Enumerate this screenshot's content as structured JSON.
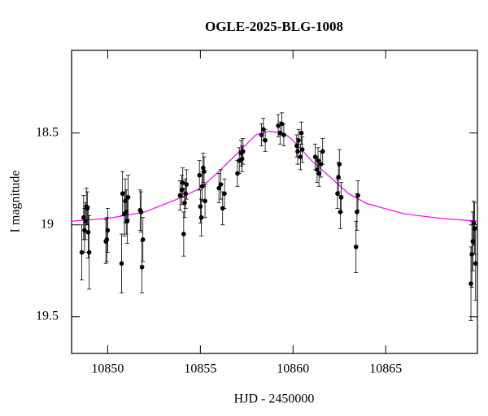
{
  "chart_data": {
    "type": "scatter",
    "title": "OGLE-2025-BLG-1008",
    "x_label": "HJD - 2450000",
    "y_label": "I magnitude",
    "y_inverted": true,
    "xlim": [
      10848.05,
      10869.95
    ],
    "ylim": [
      18.05,
      19.7
    ],
    "xticks": [
      10850,
      10855,
      10860,
      10865
    ],
    "yticks": [
      18.5,
      19,
      19.5
    ],
    "color": "#000000",
    "x": [
      10848.6,
      10848.7,
      10848.75,
      10848.8,
      10848.85,
      10848.9,
      10848.95,
      10849.0,
      10849.9,
      10849.95,
      10850.0,
      10850.75,
      10850.8,
      10850.9,
      10850.95,
      10851.0,
      10851.05,
      10851.1,
      10851.75,
      10851.8,
      10851.85,
      10851.9,
      10853.9,
      10854.0,
      10854.05,
      10854.1,
      10854.15,
      10854.2,
      10854.25,
      10854.95,
      10855.0,
      10855.05,
      10855.1,
      10855.15,
      10855.2,
      10855.25,
      10856.0,
      10856.1,
      10856.2,
      10856.3,
      10857.0,
      10857.1,
      10857.2,
      10857.25,
      10857.3,
      10858.3,
      10858.4,
      10858.5,
      10859.2,
      10859.3,
      10859.4,
      10859.5,
      10860.2,
      10860.25,
      10860.3,
      10860.4,
      10860.45,
      10860.5,
      10861.2,
      10861.3,
      10861.35,
      10861.4,
      10861.5,
      10861.6,
      10862.4,
      10862.45,
      10862.5,
      10862.55,
      10862.6,
      10863.4,
      10863.45,
      10863.5,
      10869.6,
      10869.65,
      10869.7,
      10869.75,
      10869.8,
      10869.85
    ],
    "values": [
      19.15,
      18.96,
      19.03,
      18.98,
      18.9,
      18.91,
      19.04,
      19.15,
      19.09,
      19.08,
      19.03,
      19.21,
      18.83,
      18.94,
      18.87,
      18.93,
      18.98,
      18.85,
      18.92,
      18.93,
      19.23,
      19.08,
      18.84,
      18.81,
      18.77,
      19.05,
      18.88,
      18.83,
      18.78,
      18.73,
      18.9,
      18.96,
      18.79,
      18.69,
      18.71,
      18.87,
      18.8,
      18.78,
      18.91,
      18.83,
      18.72,
      18.65,
      18.61,
      18.64,
      18.6,
      18.51,
      18.48,
      18.54,
      18.46,
      18.5,
      18.45,
      18.51,
      18.57,
      18.6,
      18.54,
      18.63,
      18.5,
      18.59,
      18.63,
      18.7,
      18.65,
      18.72,
      18.67,
      18.6,
      18.83,
      18.74,
      18.67,
      18.93,
      18.85,
      19.12,
      18.93,
      18.84,
      19.32,
      19.16,
      19.09,
      18.99,
      19.02,
      19.21
    ],
    "errors": [
      0.15,
      0.12,
      0.12,
      0.1,
      0.1,
      0.09,
      0.14,
      0.2,
      0.12,
      0.12,
      0.12,
      0.16,
      0.12,
      0.12,
      0.12,
      0.12,
      0.12,
      0.12,
      0.11,
      0.11,
      0.14,
      0.12,
      0.08,
      0.08,
      0.08,
      0.12,
      0.08,
      0.08,
      0.08,
      0.08,
      0.09,
      0.1,
      0.08,
      0.08,
      0.08,
      0.09,
      0.08,
      0.08,
      0.09,
      0.08,
      0.07,
      0.07,
      0.07,
      0.07,
      0.07,
      0.06,
      0.06,
      0.06,
      0.06,
      0.06,
      0.06,
      0.06,
      0.06,
      0.07,
      0.06,
      0.07,
      0.06,
      0.07,
      0.07,
      0.07,
      0.07,
      0.07,
      0.07,
      0.07,
      0.08,
      0.08,
      0.08,
      0.09,
      0.08,
      0.14,
      0.1,
      0.08,
      0.2,
      0.18,
      0.16,
      0.12,
      0.14,
      0.2
    ],
    "model": {
      "color": "#ff00ff",
      "x": [
        10848,
        10850,
        10852,
        10854,
        10855,
        10856,
        10857,
        10858,
        10858.7,
        10859.5,
        10860,
        10861,
        10862,
        10863,
        10864,
        10866,
        10868,
        10870
      ],
      "values": [
        18.98,
        18.965,
        18.93,
        18.85,
        18.8,
        18.71,
        18.61,
        18.51,
        18.49,
        18.5,
        18.54,
        18.65,
        18.74,
        18.83,
        18.885,
        18.94,
        18.965,
        18.98
      ]
    }
  }
}
